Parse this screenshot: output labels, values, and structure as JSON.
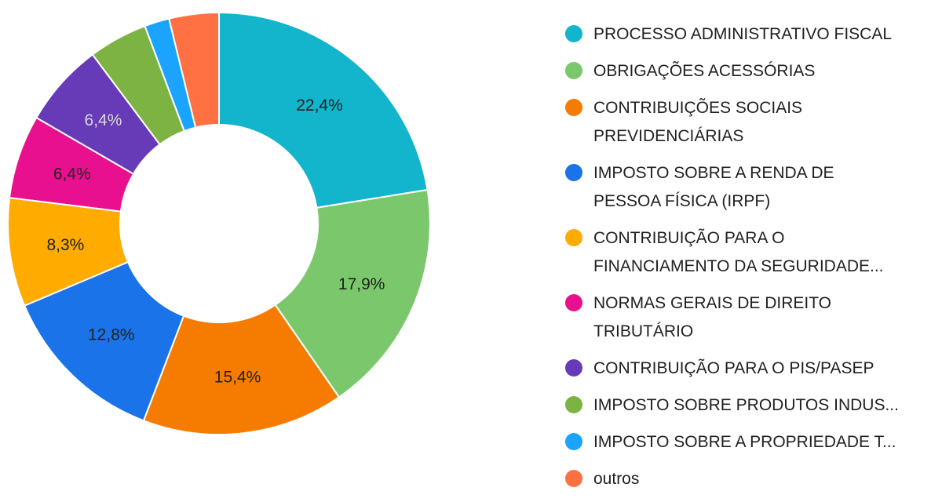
{
  "chart_data": {
    "type": "pie",
    "donut": true,
    "categories": [
      "PROCESSO ADMINISTRATIVO FISCAL",
      "OBRIGAÇÕES ACESSÓRIAS",
      "CONTRIBUIÇÕES SOCIAIS PREVIDENCIÁRIAS",
      "IMPOSTO SOBRE A RENDA DE PESSOA FÍSICA (IRPF)",
      "CONTRIBUIÇÃO PARA O FINANCIAMENTO DA SEGURIDADE...",
      "NORMAS GERAIS DE DIREITO TRIBUTÁRIO",
      "CONTRIBUIÇÃO PARA O PIS/PASEP",
      "IMPOSTO SOBRE PRODUTOS INDUS...",
      "IMPOSTO SOBRE A PROPRIEDADE T...",
      "outros"
    ],
    "values": [
      22.4,
      17.9,
      15.4,
      12.8,
      8.3,
      6.4,
      6.4,
      4.5,
      1.9,
      3.8
    ],
    "labels": [
      "22,4%",
      "17,9%",
      "15,4%",
      "12,8%",
      "8,3%",
      "6,4%",
      "6,4%",
      "",
      "",
      ""
    ],
    "colors": [
      "#12B5CB",
      "#7BC86C",
      "#F57C00",
      "#1A73E8",
      "#FFAB00",
      "#E8108F",
      "#673AB7",
      "#7CB342",
      "#1AA3FF",
      "#FF7043"
    ],
    "label_colors": [
      "#212121",
      "#212121",
      "#212121",
      "#212121",
      "#212121",
      "#212121",
      "#D9D9D9",
      "#212121",
      "#212121",
      "#212121"
    ],
    "legend_position": "right"
  },
  "legend": {
    "items": [
      {
        "lines": [
          "PROCESSO ADMINISTRATIVO FISCAL"
        ],
        "color": "#12B5CB"
      },
      {
        "lines": [
          "OBRIGAÇÕES ACESSÓRIAS"
        ],
        "color": "#7BC86C"
      },
      {
        "lines": [
          "CONTRIBUIÇÕES SOCIAIS",
          "PREVIDENCIÁRIAS"
        ],
        "color": "#F57C00"
      },
      {
        "lines": [
          "IMPOSTO SOBRE A RENDA DE",
          "PESSOA FÍSICA (IRPF)"
        ],
        "color": "#1A73E8"
      },
      {
        "lines": [
          "CONTRIBUIÇÃO PARA O",
          "FINANCIAMENTO DA SEGURIDADE..."
        ],
        "color": "#FFAB00"
      },
      {
        "lines": [
          "NORMAS GERAIS DE DIREITO",
          "TRIBUTÁRIO"
        ],
        "color": "#E8108F"
      },
      {
        "lines": [
          "CONTRIBUIÇÃO PARA O PIS/PASEP"
        ],
        "color": "#673AB7"
      },
      {
        "lines": [
          "IMPOSTO SOBRE PRODUTOS INDUS..."
        ],
        "color": "#7CB342"
      },
      {
        "lines": [
          "IMPOSTO SOBRE A PROPRIEDADE T..."
        ],
        "color": "#1AA3FF"
      },
      {
        "lines": [
          "outros"
        ],
        "color": "#FF7043"
      }
    ]
  }
}
